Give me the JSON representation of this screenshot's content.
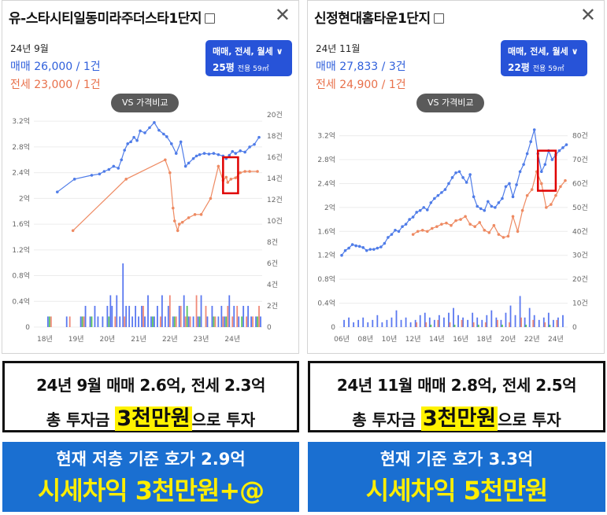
{
  "panels": [
    {
      "title": "유-스타시티일동미라주더스타1단지",
      "month": "24년 9월",
      "sale": "매매 26,000 / 1건",
      "rent": "전세 23,000 / 1건",
      "filter_line1": "매매, 전세, 월세 ∨",
      "filter_pyeong": "25평",
      "filter_area": "전용 59㎡",
      "vs_label": "VS 가격비교"
    },
    {
      "title": "신정현대홈타운1단지",
      "month": "24년 11월",
      "sale": "매매 27,833 / 3건",
      "rent": "전세 24,900 / 1건",
      "filter_line1": "매매, 전세, 월세 ∨",
      "filter_pyeong": "22평",
      "filter_area": "전용 59㎡",
      "vs_label": "VS 가격비교"
    }
  ],
  "colors": {
    "sale": "#4f7ce8",
    "rent": "#ee8a62",
    "highlight": "#e00000"
  },
  "chart_data": [
    {
      "type": "line",
      "x_type": "year",
      "xlim": [
        2017.65,
        2024.95
      ],
      "x_ticks": [
        2018,
        2019,
        2020,
        2021,
        2022,
        2023,
        2024
      ],
      "x_tick_labels": [
        "18년",
        "19년",
        "20년",
        "21년",
        "22년",
        "23년",
        "24년"
      ],
      "ylim": [
        0,
        3.3
      ],
      "y_ticks": [
        0,
        0.4,
        0.8,
        1.2,
        1.6,
        2,
        2.4,
        2.8,
        3.2
      ],
      "y_tick_labels": [
        "0",
        "0.4억",
        "0.8억",
        "1.2억",
        "1.6억",
        "2억",
        "2.4억",
        "2.8억",
        "3.2억"
      ],
      "y2lim": [
        0,
        20
      ],
      "y2_ticks": [
        0,
        2,
        4,
        6,
        8,
        10,
        12,
        14,
        16,
        18,
        20
      ],
      "y2_tick_labels": [
        "0",
        "2건",
        "4건",
        "6건",
        "8건",
        "10건",
        "12건",
        "14건",
        "16건",
        "18건",
        "20건"
      ],
      "series": [
        {
          "key": "sale",
          "x": [
            2018.4,
            2018.95,
            2019.5,
            2019.75,
            2019.9,
            2020.05,
            2020.2,
            2020.35,
            2020.45,
            2020.55,
            2020.65,
            2020.75,
            2020.85,
            2020.95,
            2021.05,
            2021.2,
            2021.35,
            2021.5,
            2021.65,
            2021.8,
            2021.9,
            2022.05,
            2022.2,
            2022.35,
            2022.5,
            2022.6,
            2022.75,
            2022.85,
            2022.95,
            2023.1,
            2023.25,
            2023.4,
            2023.55,
            2023.7,
            2023.8,
            2023.9,
            2024.0,
            2024.1,
            2024.25,
            2024.4,
            2024.55,
            2024.7,
            2024.85
          ],
          "y": [
            2.1,
            2.3,
            2.36,
            2.38,
            2.42,
            2.45,
            2.5,
            2.47,
            2.6,
            2.75,
            2.85,
            2.88,
            2.95,
            2.9,
            3.05,
            3.02,
            3.1,
            3.18,
            3.06,
            3.0,
            2.96,
            2.85,
            2.7,
            2.88,
            2.5,
            2.55,
            2.62,
            2.66,
            2.68,
            2.7,
            2.69,
            2.7,
            2.68,
            2.66,
            2.62,
            2.67,
            2.73,
            2.7,
            2.74,
            2.72,
            2.8,
            2.84,
            2.95
          ]
        },
        {
          "key": "rent",
          "x": [
            2018.9,
            2020.6,
            2021.85,
            2022.0,
            2022.1,
            2022.15,
            2022.25,
            2022.3,
            2022.4,
            2022.6,
            2022.8,
            2023.0,
            2023.3,
            2023.55,
            2023.7,
            2023.8,
            2023.85,
            2023.95,
            2024.1,
            2024.25,
            2024.4,
            2024.55,
            2024.8
          ],
          "y": [
            1.5,
            2.3,
            2.6,
            2.4,
            1.85,
            1.65,
            1.5,
            1.6,
            1.63,
            1.7,
            1.75,
            1.75,
            2.0,
            2.5,
            2.28,
            2.33,
            2.25,
            2.3,
            2.32,
            2.4,
            2.42,
            2.42,
            2.42
          ]
        }
      ],
      "volume_bars": [
        {
          "key": "sale",
          "x": [
            2018.1,
            2018.7,
            2019.15,
            2019.3,
            2019.45,
            2019.6,
            2019.7,
            2019.85,
            2020.0,
            2020.1,
            2020.15,
            2020.3,
            2020.4,
            2020.5,
            2020.6,
            2020.7,
            2020.8,
            2020.9,
            2021.0,
            2021.1,
            2021.2,
            2021.3,
            2021.4,
            2021.5,
            2021.6,
            2021.75,
            2021.85,
            2021.95,
            2022.1,
            2022.3,
            2022.45,
            2022.6,
            2022.75,
            2022.9,
            2023.0,
            2023.2,
            2023.35,
            2023.55,
            2023.65,
            2023.75,
            2023.9,
            2024.05,
            2024.2,
            2024.35,
            2024.5,
            2024.6,
            2024.75,
            2024.9
          ],
          "v": [
            1,
            1,
            1,
            2,
            1,
            2,
            1,
            1,
            2,
            3,
            2,
            3,
            1,
            6,
            2,
            2,
            1,
            2,
            1,
            2,
            1,
            3,
            1,
            1,
            2,
            3,
            1,
            2,
            1,
            2,
            3,
            1,
            1,
            1,
            3,
            1,
            2,
            1,
            2,
            1,
            3,
            2,
            1,
            2,
            2,
            1,
            1,
            1
          ]
        },
        {
          "key": "rent",
          "x": [
            2018.2,
            2018.8,
            2019.25,
            2020.25,
            2020.55,
            2021.15,
            2021.7,
            2022.0,
            2022.2,
            2022.35,
            2022.5,
            2022.65,
            2022.85,
            2023.15,
            2023.45,
            2023.7,
            2023.85,
            2024.0,
            2024.15,
            2024.45,
            2024.65,
            2024.85
          ],
          "v": [
            1,
            1,
            1,
            1,
            1,
            2,
            1,
            3,
            1,
            2,
            1,
            1,
            3,
            2,
            1,
            1,
            2,
            1,
            2,
            1,
            1,
            2
          ]
        },
        {
          "key": "monthly",
          "x": [
            2018.15,
            2019.2,
            2019.5,
            2020.05,
            2021.45,
            2022.15,
            2022.55,
            2022.95,
            2023.4,
            2023.8,
            2024.3,
            2024.8
          ],
          "v": [
            1,
            1,
            1,
            1,
            1,
            1,
            2,
            1,
            1,
            1,
            1,
            1
          ]
        }
      ],
      "highlight_box": {
        "x0": 2023.7,
        "x1": 2024.18,
        "y0": 2.08,
        "y1": 2.64
      }
    },
    {
      "type": "line",
      "x_type": "year",
      "xlim": [
        2005.8,
        2025.0
      ],
      "x_ticks": [
        2006,
        2008,
        2010,
        2012,
        2014,
        2016,
        2018,
        2020,
        2022,
        2024
      ],
      "x_tick_labels": [
        "06년",
        "08년",
        "10년",
        "12년",
        "14년",
        "16년",
        "18년",
        "20년",
        "22년",
        "24년"
      ],
      "ylim": [
        0,
        3.55
      ],
      "y_ticks": [
        0,
        0.4,
        0.8,
        1.2,
        1.6,
        2,
        2.4,
        2.8,
        3.2
      ],
      "y_tick_labels": [
        "0",
        "0.4억",
        "0.8억",
        "1.2억",
        "1.6억",
        "2억",
        "2.4억",
        "2.8억",
        "3.2억"
      ],
      "y2lim": [
        0,
        88.75
      ],
      "y2_ticks": [
        0,
        10,
        20,
        30,
        40,
        50,
        60,
        70,
        80
      ],
      "y2_tick_labels": [
        "0",
        "10건",
        "20건",
        "30건",
        "40건",
        "50건",
        "60건",
        "70건",
        "80건"
      ],
      "series": [
        {
          "key": "sale",
          "x": [
            2006.0,
            2006.3,
            2006.6,
            2006.9,
            2007.2,
            2007.5,
            2007.8,
            2008.1,
            2008.4,
            2008.7,
            2009.0,
            2009.3,
            2009.6,
            2009.9,
            2010.2,
            2010.5,
            2010.8,
            2011.1,
            2011.4,
            2011.7,
            2012.0,
            2012.3,
            2012.6,
            2012.9,
            2013.2,
            2013.5,
            2013.8,
            2014.1,
            2014.4,
            2014.7,
            2015.0,
            2015.3,
            2015.6,
            2015.9,
            2016.2,
            2016.5,
            2016.8,
            2017.1,
            2017.4,
            2017.7,
            2018.0,
            2018.3,
            2018.6,
            2018.9,
            2019.2,
            2019.5,
            2019.8,
            2020.1,
            2020.4,
            2020.7,
            2021.0,
            2021.3,
            2021.6,
            2021.9,
            2022.2,
            2022.5,
            2022.8,
            2023.1,
            2023.4,
            2023.7,
            2024.0,
            2024.3,
            2024.6,
            2024.9
          ],
          "y": [
            1.2,
            1.28,
            1.32,
            1.38,
            1.36,
            1.35,
            1.33,
            1.28,
            1.3,
            1.3,
            1.32,
            1.34,
            1.4,
            1.5,
            1.55,
            1.62,
            1.6,
            1.68,
            1.72,
            1.8,
            1.84,
            1.92,
            1.95,
            2.0,
            1.96,
            2.08,
            2.15,
            2.2,
            2.25,
            2.3,
            2.4,
            2.5,
            2.58,
            2.6,
            2.5,
            2.42,
            2.55,
            2.18,
            2.02,
            1.98,
            1.95,
            2.1,
            2.02,
            2.0,
            2.08,
            2.15,
            2.35,
            2.4,
            2.18,
            2.38,
            2.6,
            2.72,
            2.9,
            3.1,
            3.3,
            2.9,
            2.6,
            2.72,
            2.95,
            2.8,
            2.88,
            2.95,
            3.0,
            3.05
          ]
        },
        {
          "key": "rent",
          "x": [
            2012.0,
            2012.4,
            2012.8,
            2013.2,
            2013.6,
            2014.0,
            2014.4,
            2014.8,
            2015.2,
            2015.6,
            2016.0,
            2016.4,
            2016.8,
            2017.2,
            2017.6,
            2018.0,
            2018.4,
            2018.8,
            2019.2,
            2019.6,
            2020.0,
            2020.4,
            2020.8,
            2021.2,
            2021.6,
            2022.0,
            2022.4,
            2022.8,
            2023.2,
            2023.6,
            2024.0,
            2024.4,
            2024.8
          ],
          "y": [
            1.55,
            1.6,
            1.62,
            1.6,
            1.65,
            1.68,
            1.72,
            1.74,
            1.7,
            1.78,
            1.8,
            1.85,
            1.72,
            1.68,
            1.75,
            1.62,
            1.58,
            1.7,
            1.55,
            1.5,
            1.52,
            1.85,
            1.6,
            1.95,
            2.2,
            2.3,
            2.6,
            2.4,
            2.0,
            2.05,
            2.2,
            2.35,
            2.45
          ]
        }
      ],
      "volume_bars": [
        {
          "key": "sale",
          "x": [
            2006.2,
            2006.6,
            2007.0,
            2007.4,
            2007.8,
            2008.2,
            2008.6,
            2009.0,
            2009.4,
            2009.8,
            2010.2,
            2010.6,
            2011.0,
            2011.4,
            2011.8,
            2012.2,
            2012.6,
            2013.0,
            2013.4,
            2013.8,
            2014.2,
            2014.6,
            2015.0,
            2015.4,
            2015.8,
            2016.2,
            2016.6,
            2017.0,
            2017.4,
            2017.8,
            2018.2,
            2018.6,
            2019.0,
            2019.4,
            2019.8,
            2020.2,
            2020.6,
            2021.0,
            2021.4,
            2021.8,
            2022.2,
            2022.6,
            2023.0,
            2023.4,
            2023.8,
            2024.2,
            2024.6
          ],
          "v": [
            3,
            4,
            2,
            3,
            4,
            2,
            3,
            5,
            2,
            3,
            4,
            7,
            3,
            4,
            2,
            3,
            5,
            6,
            4,
            3,
            5,
            4,
            6,
            8,
            5,
            4,
            3,
            6,
            4,
            3,
            5,
            7,
            4,
            3,
            6,
            9,
            5,
            13,
            4,
            8,
            5,
            3,
            4,
            6,
            3,
            4,
            5
          ]
        },
        {
          "key": "rent",
          "x": [
            2012.3,
            2013.1,
            2014.1,
            2015.1,
            2016.1,
            2017.1,
            2018.1,
            2019.1,
            2020.1,
            2021.1,
            2022.1,
            2023.1,
            2024.1
          ],
          "v": [
            2,
            2,
            3,
            2,
            3,
            2,
            2,
            3,
            2,
            4,
            3,
            2,
            3
          ]
        },
        {
          "key": "monthly",
          "x": [
            2013.5,
            2015.5,
            2017.5,
            2019.5,
            2021.5,
            2023.5
          ],
          "v": [
            1,
            1,
            1,
            1,
            1,
            1
          ]
        }
      ],
      "highlight_box": {
        "x0": 2022.5,
        "x1": 2024.0,
        "y0": 2.28,
        "y1": 2.95
      }
    }
  ],
  "summaries": [
    {
      "line1": "24년 9월 매매 2.6억, 전세 2.3억",
      "line2_pre": "총 투자금 ",
      "line2_hl": "3천만원",
      "line2_post": "으로 투자"
    },
    {
      "line1": "24년 11월 매매 2.8억, 전세 2.5억",
      "line2_pre": "총 투자금 ",
      "line2_hl": "3천만원",
      "line2_post": "으로 투자"
    }
  ],
  "blueboxes": [
    {
      "line1": "현재 저층 기준 호가 2.9억",
      "line2": "시세차익 3천만원+@"
    },
    {
      "line1": "현재 기준 호가 3.3억",
      "line2": "시세차익 5천만원"
    }
  ]
}
